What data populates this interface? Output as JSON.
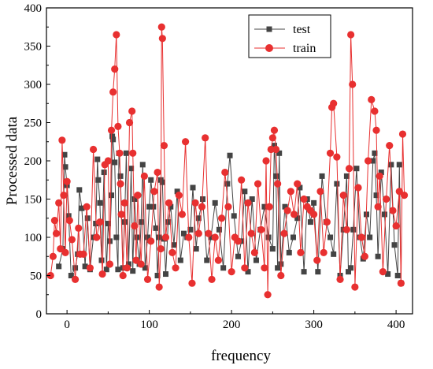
{
  "chart_data": {
    "type": "line",
    "title": "",
    "xlabel": "frequency",
    "ylabel": "Processed data",
    "xlim": [
      -25,
      420
    ],
    "ylim": [
      0,
      400
    ],
    "xticks": [
      "0",
      "100",
      "200",
      "300",
      "400"
    ],
    "yticks": [
      "0",
      "50",
      "100",
      "150",
      "200",
      "250",
      "300",
      "350",
      "400"
    ],
    "grid": false,
    "legend_position": "top-right",
    "series": [
      {
        "name": "test",
        "color": "#444444",
        "marker": "square",
        "x": [
          -10,
          -5,
          -3,
          -2,
          0,
          2,
          5,
          10,
          13,
          15,
          18,
          22,
          25,
          28,
          32,
          35,
          37,
          38,
          40,
          42,
          45,
          48,
          50,
          52,
          54,
          55,
          56,
          58,
          60,
          62,
          63,
          65,
          68,
          70,
          72,
          75,
          78,
          80,
          82,
          85,
          88,
          90,
          92,
          95,
          98,
          100,
          102,
          105,
          108,
          110,
          112,
          114,
          116,
          118,
          120,
          123,
          126,
          130,
          134,
          138,
          142,
          146,
          150,
          153,
          157,
          160,
          165,
          170,
          175,
          180,
          185,
          190,
          195,
          198,
          203,
          208,
          212,
          216,
          220,
          225,
          230,
          235,
          240,
          245,
          250,
          252,
          254,
          256,
          258,
          260,
          265,
          270,
          275,
          280,
          283,
          288,
          292,
          296,
          300,
          305,
          310,
          315,
          320,
          324,
          328,
          332,
          336,
          340,
          342,
          345,
          348,
          352,
          356,
          360,
          364,
          368,
          372,
          374,
          376,
          378,
          382,
          386,
          390,
          394,
          398,
          402,
          404,
          406
        ],
        "values": [
          62,
          85,
          208,
          192,
          168,
          128,
          50,
          60,
          78,
          162,
          138,
          62,
          125,
          58,
          100,
          118,
          202,
          175,
          145,
          70,
          185,
          58,
          118,
          95,
          155,
          232,
          228,
          198,
          100,
          58,
          210,
          180,
          60,
          120,
          210,
          65,
          190,
          56,
          150,
          100,
          65,
          120,
          195,
          60,
          100,
          140,
          175,
          140,
          112,
          50,
          100,
          175,
          172,
          98,
          52,
          120,
          140,
          90,
          160,
          70,
          105,
          100,
          110,
          165,
          85,
          125,
          150,
          70,
          100,
          145,
          110,
          60,
          170,
          207,
          128,
          75,
          95,
          160,
          55,
          150,
          70,
          110,
          140,
          100,
          85,
          220,
          180,
          60,
          210,
          65,
          140,
          80,
          100,
          125,
          165,
          55,
          150,
          120,
          145,
          55,
          180,
          120,
          100,
          78,
          170,
          50,
          110,
          180,
          55,
          60,
          110,
          190,
          100,
          72,
          130,
          100,
          200,
          210,
          155,
          75,
          185,
          130,
          52,
          195,
          90,
          50,
          195,
          40
        ]
      },
      {
        "name": "train",
        "color": "#e83030",
        "marker": "circle",
        "x": [
          -20,
          -17,
          -15,
          -13,
          -10,
          -8,
          -6,
          -4,
          -2,
          0,
          3,
          6,
          10,
          14,
          16,
          20,
          24,
          28,
          32,
          36,
          40,
          43,
          46,
          50,
          52,
          54,
          56,
          58,
          60,
          62,
          64,
          65,
          66,
          68,
          70,
          73,
          76,
          79,
          80,
          82,
          84,
          86,
          90,
          94,
          98,
          102,
          106,
          110,
          112,
          114,
          115,
          116,
          118,
          120,
          124,
          128,
          132,
          136,
          140,
          144,
          148,
          152,
          156,
          160,
          164,
          168,
          172,
          176,
          180,
          184,
          188,
          192,
          196,
          200,
          204,
          208,
          212,
          216,
          220,
          224,
          228,
          232,
          236,
          240,
          242,
          244,
          246,
          248,
          250,
          252,
          254,
          256,
          260,
          264,
          268,
          272,
          276,
          280,
          284,
          288,
          292,
          296,
          300,
          304,
          308,
          312,
          316,
          320,
          322,
          324,
          328,
          332,
          336,
          340,
          343,
          345,
          347,
          350,
          354,
          358,
          362,
          366,
          370,
          374,
          376,
          378,
          380,
          384,
          388,
          392,
          396,
          400,
          404,
          406,
          408,
          410
        ],
        "values": [
          50,
          75,
          122,
          105,
          145,
          85,
          227,
          155,
          80,
          173,
          122,
          97,
          45,
          112,
          78,
          78,
          140,
          60,
          215,
          100,
          120,
          52,
          195,
          200,
          65,
          240,
          290,
          320,
          365,
          245,
          210,
          170,
          130,
          50,
          145,
          60,
          250,
          265,
          210,
          115,
          70,
          155,
          65,
          180,
          45,
          95,
          160,
          185,
          35,
          85,
          375,
          360,
          220,
          100,
          145,
          80,
          60,
          155,
          130,
          225,
          100,
          40,
          145,
          105,
          140,
          230,
          105,
          45,
          100,
          70,
          125,
          185,
          140,
          55,
          100,
          95,
          175,
          60,
          145,
          105,
          80,
          170,
          110,
          60,
          200,
          25,
          140,
          215,
          230,
          240,
          215,
          170,
          50,
          105,
          135,
          160,
          130,
          170,
          80,
          150,
          140,
          135,
          130,
          70,
          160,
          80,
          120,
          210,
          270,
          275,
          205,
          45,
          155,
          110,
          190,
          365,
          300,
          35,
          165,
          100,
          75,
          200,
          280,
          265,
          240,
          140,
          180,
          55,
          150,
          220,
          135,
          115,
          160,
          40,
          235,
          155
        ]
      }
    ]
  }
}
